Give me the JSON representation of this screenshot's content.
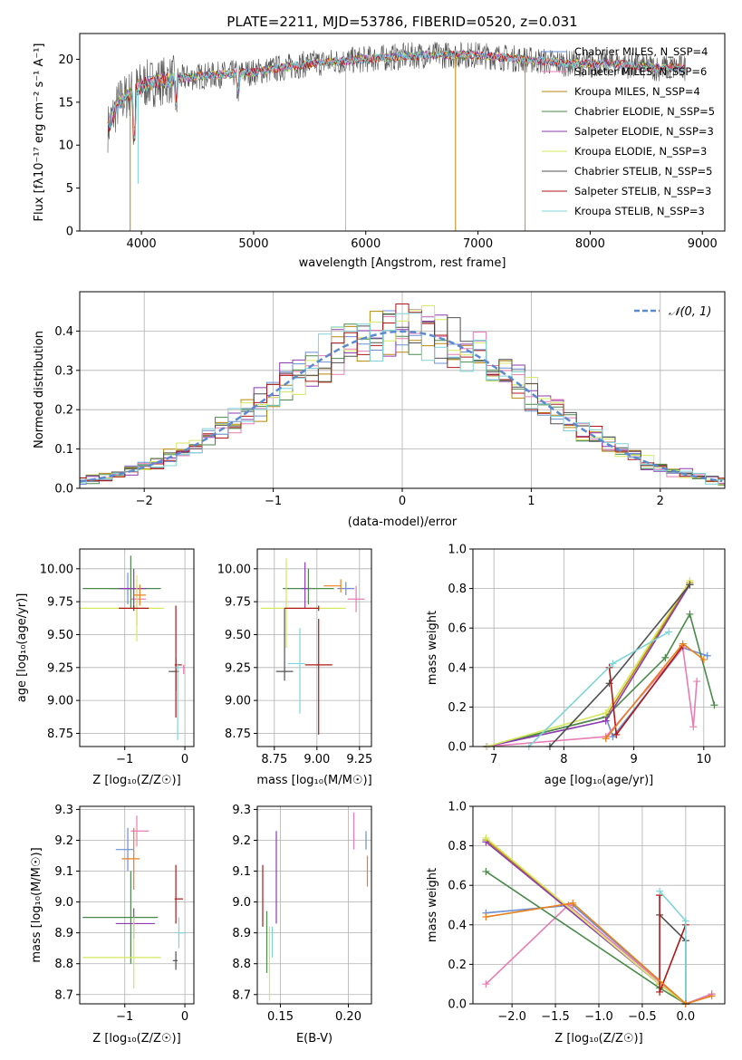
{
  "colors": {
    "chabrier_miles": "#6b8fd4",
    "salpeter_miles": "#e87cb4",
    "kroupa_miles": "#b8860b",
    "chabrier_elodie": "#4a8a4a",
    "salpeter_elodie": "#8e3ab0",
    "kroupa_elodie": "#d4e85c",
    "chabrier_stelib": "#505050",
    "salpeter_stelib": "#b01818",
    "kroupa_stelib": "#7fd4d8",
    "gauss": "#5b8ad0",
    "orange": "#e8801c",
    "grid": "#b0b0b0"
  },
  "chart_data": [
    {
      "id": "spectrum",
      "type": "line",
      "title": "PLATE=2211, MJD=53786, FIBERID=0520, z=0.031",
      "xlabel": "wavelength [Angstrom, rest frame]",
      "ylabel": "Flux [fλ10⁻¹⁷ erg cm⁻² s⁻¹ A⁻¹]",
      "xlim": [
        3450,
        9200
      ],
      "ylim": [
        0,
        23
      ],
      "xticks": [
        4000,
        5000,
        6000,
        7000,
        8000,
        9000
      ],
      "yticks": [
        0,
        5,
        10,
        15,
        20
      ],
      "grid": false,
      "legend_position": "top-right",
      "legend": [
        "Chabrier MILES, N_SSP=4",
        "Salpeter MILES, N_SSP=6",
        "Kroupa MILES, N_SSP=4",
        "Chabrier ELODIE, N_SSP=5",
        "Salpeter ELODIE, N_SSP=3",
        "Kroupa ELODIE, N_SSP=3",
        "Chabrier STELIB, N_SSP=5",
        "Salpeter STELIB, N_SSP=3",
        "Kroupa STELIB, N_SSP=3"
      ],
      "continuum": {
        "x": [
          3700,
          3800,
          3900,
          4000,
          4200,
          4500,
          5000,
          5500,
          6000,
          6500,
          7000,
          7400,
          7800,
          8200,
          8600,
          8850
        ],
        "y": [
          12,
          15,
          16,
          17,
          17.5,
          18,
          18.5,
          19.5,
          20,
          20.5,
          20.5,
          20,
          19.5,
          19.5,
          19,
          19
        ]
      },
      "dips": [
        {
          "x": 3900,
          "y": 0,
          "series": "kroupa_miles"
        },
        {
          "x": 3970,
          "y": 5.5,
          "series": "kroupa_stelib"
        },
        {
          "x": 5820,
          "y": 0,
          "series": "kroupa_stelib"
        },
        {
          "x": 6800,
          "y": 0,
          "series": "kroupa_miles"
        },
        {
          "x": 7420,
          "y": 0,
          "series": "orange"
        }
      ]
    },
    {
      "id": "residuals",
      "type": "line",
      "xlabel": "(data-model)/error",
      "ylabel": "Normed distribution",
      "xlim": [
        -2.5,
        2.5
      ],
      "ylim": [
        0,
        0.5
      ],
      "xticks": [
        -2,
        -1,
        0,
        1,
        2
      ],
      "yticks": [
        0.0,
        0.1,
        0.2,
        0.3,
        0.4
      ],
      "grid": true,
      "legend_position": "top-right",
      "legend": [
        "𝒩(0, 1)"
      ],
      "gaussian": {
        "mean": 0,
        "sigma": 1
      }
    },
    {
      "id": "age_vs_Z",
      "type": "scatter",
      "xlabel": "Z [log₁₀(Z/Z☉)]",
      "ylabel": "age  [log₁₀(age/yr)]",
      "xlim": [
        -1.75,
        0.15
      ],
      "ylim": [
        8.65,
        10.15
      ],
      "xticks": [
        -1,
        0
      ],
      "yticks": [
        8.75,
        9.0,
        9.25,
        9.5,
        9.75,
        10.0
      ],
      "grid": true,
      "points": [
        {
          "series": "chabrier_miles",
          "x": -0.95,
          "y": 9.85,
          "xerr": [
            0.3,
            0.2
          ],
          "yerr": [
            0.12,
            0.12
          ]
        },
        {
          "series": "salpeter_miles",
          "x": -0.8,
          "y": 9.77,
          "xerr": [
            0.1,
            0.15
          ],
          "yerr": [
            0.2,
            0.1
          ]
        },
        {
          "series": "chabrier_elodie",
          "x": -0.9,
          "y": 9.85,
          "xerr": [
            0.8,
            0.5
          ],
          "yerr": [
            0.15,
            0.25
          ]
        },
        {
          "series": "salpeter_elodie",
          "x": -0.85,
          "y": 9.85,
          "xerr": [
            0.25,
            0.2
          ],
          "yerr": [
            0.15,
            0.15
          ]
        },
        {
          "series": "kroupa_elodie",
          "x": -0.8,
          "y": 9.7,
          "xerr": [
            0.95,
            0.45
          ],
          "yerr": [
            0.25,
            0.25
          ]
        },
        {
          "series": "orange",
          "x": -0.75,
          "y": 9.8,
          "xerr": [
            0.1,
            0.1
          ],
          "yerr": [
            0.08,
            0.08
          ]
        },
        {
          "series": "salpeter_stelib",
          "x": -0.85,
          "y": 9.7,
          "xerr": [
            0.25,
            0.25
          ],
          "yerr": [
            0.02,
            0.02
          ]
        },
        {
          "series": "chabrier_stelib",
          "x": -0.15,
          "y": 9.22,
          "xerr": [
            0.12,
            0.05
          ],
          "yerr": [
            0.15,
            0.1
          ]
        },
        {
          "series": "salpeter_stelib",
          "x": -0.15,
          "y": 9.27,
          "xerr": [
            0.02,
            0.1
          ],
          "yerr": [
            0.4,
            0.45
          ]
        },
        {
          "series": "kroupa_stelib",
          "x": -0.12,
          "y": 9.25,
          "xerr": [
            0.03,
            0.05
          ],
          "yerr": [
            0.55,
            0.03
          ]
        },
        {
          "series": "salpeter_miles",
          "x": -0.02,
          "y": 9.25,
          "xerr": [
            0.02,
            0.02
          ],
          "yerr": [
            0.05,
            0.02
          ]
        }
      ]
    },
    {
      "id": "age_vs_mass",
      "type": "scatter",
      "xlabel": "mass [log₁₀(M/M☉)]",
      "ylabel": "",
      "xlim": [
        8.65,
        9.32
      ],
      "ylim": [
        8.65,
        10.15
      ],
      "xticks": [
        8.75,
        9.0,
        9.25
      ],
      "yticks": [
        8.75,
        9.0,
        9.25,
        9.5,
        9.75,
        10.0
      ],
      "grid": true,
      "points": [
        {
          "series": "chabrier_miles",
          "x": 9.17,
          "y": 9.85,
          "xerr": [
            0.05,
            0.05
          ],
          "yerr": [
            0.05,
            0.05
          ]
        },
        {
          "series": "salpeter_miles",
          "x": 9.23,
          "y": 9.77,
          "xerr": [
            0.05,
            0.05
          ],
          "yerr": [
            0.1,
            0.1
          ]
        },
        {
          "series": "orange",
          "x": 9.14,
          "y": 9.87,
          "xerr": [
            0.1,
            0.0
          ],
          "yerr": [
            0.05,
            0.05
          ]
        },
        {
          "series": "chabrier_elodie",
          "x": 8.95,
          "y": 9.85,
          "xerr": [
            0.15,
            0.15
          ],
          "yerr": [
            0.12,
            0.15
          ]
        },
        {
          "series": "salpeter_elodie",
          "x": 8.93,
          "y": 9.85,
          "xerr": [
            0.02,
            0.02
          ],
          "yerr": [
            0.15,
            0.2
          ]
        },
        {
          "series": "kroupa_elodie",
          "x": 8.82,
          "y": 9.7,
          "xerr": [
            0.15,
            0.35
          ],
          "yerr": [
            0.3,
            0.38
          ]
        },
        {
          "series": "chabrier_stelib",
          "x": 8.81,
          "y": 9.22,
          "xerr": [
            0.05,
            0.05
          ],
          "yerr": [
            0.07,
            0.48
          ]
        },
        {
          "series": "salpeter_stelib",
          "x": 9.01,
          "y": 9.27,
          "xerr": [
            0.08,
            0.08
          ],
          "yerr": [
            0.53,
            0.35
          ]
        },
        {
          "series": "kroupa_stelib",
          "x": 8.9,
          "y": 9.28,
          "xerr": [
            0.07,
            0.03
          ],
          "yerr": [
            0.38,
            0.27
          ]
        },
        {
          "series": "salpeter_stelib",
          "x": 9.01,
          "y": 9.7,
          "xerr": [
            0.2,
            0.0
          ],
          "yerr": [
            0.02,
            0.02
          ]
        }
      ]
    },
    {
      "id": "weight_vs_age",
      "type": "line",
      "xlabel": "age  [log₁₀(age/yr)]",
      "ylabel": "mass weight",
      "xlim": [
        6.7,
        10.3
      ],
      "ylim": [
        0,
        1
      ],
      "xticks": [
        7,
        8,
        9,
        10
      ],
      "yticks": [
        0.0,
        0.2,
        0.4,
        0.6,
        0.8,
        1.0
      ],
      "grid": true,
      "series": [
        {
          "key": "chabrier_miles",
          "x": [
            6.9,
            8.6,
            8.7,
            9.7,
            10.05
          ],
          "y": [
            0.0,
            0.15,
            0.05,
            0.5,
            0.46
          ]
        },
        {
          "key": "salpeter_miles",
          "x": [
            6.9,
            8.6,
            9.7,
            9.85,
            9.9
          ],
          "y": [
            0.0,
            0.05,
            0.5,
            0.1,
            0.33
          ]
        },
        {
          "key": "kroupa_miles",
          "x": [
            6.9,
            8.6,
            9.8
          ],
          "y": [
            0.0,
            0.15,
            0.83
          ]
        },
        {
          "key": "chabrier_elodie",
          "x": [
            6.9,
            8.6,
            9.45,
            9.8,
            10.15
          ],
          "y": [
            0.0,
            0.15,
            0.45,
            0.67,
            0.21
          ]
        },
        {
          "key": "salpeter_elodie",
          "x": [
            6.9,
            8.6,
            9.8
          ],
          "y": [
            0.0,
            0.13,
            0.82
          ]
        },
        {
          "key": "kroupa_elodie",
          "x": [
            6.9,
            8.6,
            9.8
          ],
          "y": [
            0.0,
            0.17,
            0.84
          ]
        },
        {
          "key": "chabrier_stelib",
          "x": [
            7.8,
            8.65,
            9.8
          ],
          "y": [
            0.0,
            0.32,
            0.82
          ]
        },
        {
          "key": "salpeter_stelib",
          "x": [
            8.65,
            8.75,
            9.7
          ],
          "y": [
            0.4,
            0.06,
            0.51
          ]
        },
        {
          "key": "kroupa_stelib",
          "x": [
            7.5,
            8.7,
            9.5
          ],
          "y": [
            0.0,
            0.42,
            0.58
          ]
        },
        {
          "key": "orange",
          "x": [
            8.6,
            9.7,
            10.0
          ],
          "y": [
            0.04,
            0.52,
            0.44
          ]
        }
      ]
    },
    {
      "id": "mass_vs_Z",
      "type": "scatter",
      "xlabel": "Z [log₁₀(Z/Z☉)]",
      "ylabel": "mass [log₁₀(M/M☉)]",
      "xlim": [
        -1.75,
        0.15
      ],
      "ylim": [
        8.67,
        9.31
      ],
      "xticks": [
        -1,
        0
      ],
      "yticks": [
        8.7,
        8.8,
        8.9,
        9.0,
        9.1,
        9.2,
        9.3
      ],
      "grid": true,
      "points": [
        {
          "series": "chabrier_miles",
          "x": -0.95,
          "y": 9.17,
          "xerr": [
            0.2,
            0.1
          ],
          "yerr": [
            0.07,
            0.07
          ]
        },
        {
          "series": "salpeter_miles",
          "x": -0.8,
          "y": 9.23,
          "xerr": [
            0.1,
            0.2
          ],
          "yerr": [
            0.05,
            0.05
          ]
        },
        {
          "series": "orange",
          "x": -0.85,
          "y": 9.14,
          "xerr": [
            0.2,
            0.1
          ],
          "yerr": [
            0.1,
            0.1
          ]
        },
        {
          "series": "chabrier_elodie",
          "x": -0.9,
          "y": 8.95,
          "xerr": [
            0.8,
            0.45
          ],
          "yerr": [
            0.15,
            0.15
          ]
        },
        {
          "series": "salpeter_elodie",
          "x": -0.85,
          "y": 8.93,
          "xerr": [
            0.3,
            0.35
          ],
          "yerr": [
            0.05,
            0.05
          ]
        },
        {
          "series": "kroupa_elodie",
          "x": -0.85,
          "y": 8.82,
          "xerr": [
            0.85,
            0.45
          ],
          "yerr": [
            0.1,
            0.13
          ]
        },
        {
          "series": "chabrier_stelib",
          "x": -0.15,
          "y": 8.81,
          "xerr": [
            0.05,
            0.03
          ],
          "yerr": [
            0.03,
            0.03
          ]
        },
        {
          "series": "salpeter_stelib",
          "x": -0.15,
          "y": 9.01,
          "xerr": [
            0.02,
            0.12
          ],
          "yerr": [
            0.08,
            0.11
          ]
        },
        {
          "series": "kroupa_stelib",
          "x": -0.1,
          "y": 8.9,
          "xerr": [
            0.02,
            0.12
          ],
          "yerr": [
            0.05,
            0.05
          ]
        }
      ]
    },
    {
      "id": "mass_vs_ebv",
      "type": "scatter",
      "xlabel": "E(B-V)",
      "ylabel": "",
      "xlim": [
        0.133,
        0.217
      ],
      "ylim": [
        8.67,
        9.31
      ],
      "xticks": [
        0.15,
        0.2
      ],
      "yticks": [
        8.7,
        8.8,
        8.9,
        9.0,
        9.1,
        9.2,
        9.3
      ],
      "grid": true,
      "points": [
        {
          "series": "salpeter_stelib",
          "x": 0.137,
          "y": 9.02,
          "xerr": [
            0,
            0
          ],
          "yerr": [
            0.1,
            0.1
          ]
        },
        {
          "series": "chabrier_elodie",
          "x": 0.14,
          "y": 8.87,
          "xerr": [
            0,
            0
          ],
          "yerr": [
            0.1,
            0.1
          ]
        },
        {
          "series": "kroupa_elodie",
          "x": 0.142,
          "y": 8.82,
          "xerr": [
            0,
            0
          ],
          "yerr": [
            0.14,
            0.1
          ]
        },
        {
          "series": "kroupa_stelib",
          "x": 0.144,
          "y": 8.87,
          "xerr": [
            0,
            0
          ],
          "yerr": [
            0.05,
            0.05
          ]
        },
        {
          "series": "salpeter_elodie",
          "x": 0.147,
          "y": 9.08,
          "xerr": [
            0,
            0
          ],
          "yerr": [
            0.15,
            0.15
          ]
        },
        {
          "series": "salpeter_miles",
          "x": 0.204,
          "y": 9.23,
          "xerr": [
            0,
            0
          ],
          "yerr": [
            0.06,
            0.06
          ]
        },
        {
          "series": "chabrier_miles",
          "x": 0.213,
          "y": 9.2,
          "xerr": [
            0,
            0
          ],
          "yerr": [
            0.03,
            0.03
          ]
        },
        {
          "series": "orange",
          "x": 0.214,
          "y": 9.1,
          "xerr": [
            0,
            0
          ],
          "yerr": [
            0.05,
            0.05
          ]
        }
      ]
    },
    {
      "id": "weight_vs_Z",
      "type": "line",
      "xlabel": "Z [log₁₀(Z/Z☉)]",
      "ylabel": "mass weight",
      "xlim": [
        -2.45,
        0.45
      ],
      "ylim": [
        0,
        1
      ],
      "xticks": [
        -2.0,
        -1.5,
        -1.0,
        -0.5,
        0.0
      ],
      "yticks": [
        0.0,
        0.2,
        0.4,
        0.6,
        0.8,
        1.0
      ],
      "grid": true,
      "series": [
        {
          "key": "chabrier_miles",
          "x": [
            -2.3,
            -1.3,
            0.0,
            0.3
          ],
          "y": [
            0.46,
            0.5,
            0.0,
            0.05
          ]
        },
        {
          "key": "salpeter_miles",
          "x": [
            -2.3,
            -1.35,
            0.0,
            0.3
          ],
          "y": [
            0.1,
            0.5,
            0.0,
            0.05
          ]
        },
        {
          "key": "kroupa_miles",
          "x": [
            -2.3,
            -0.3,
            0.0
          ],
          "y": [
            0.83,
            0.1,
            0.0
          ]
        },
        {
          "key": "chabrier_elodie",
          "x": [
            -2.3,
            -0.3,
            0.0
          ],
          "y": [
            0.67,
            0.08,
            0.0
          ]
        },
        {
          "key": "salpeter_elodie",
          "x": [
            -2.3,
            -0.3,
            0.0
          ],
          "y": [
            0.82,
            0.1,
            0.0
          ]
        },
        {
          "key": "kroupa_elodie",
          "x": [
            -2.3,
            -0.3,
            0.0
          ],
          "y": [
            0.84,
            0.1,
            0.0
          ]
        },
        {
          "key": "chabrier_stelib",
          "x": [
            -0.3,
            0.0,
            0.0
          ],
          "y": [
            0.45,
            0.32,
            0.0
          ]
        },
        {
          "key": "salpeter_stelib",
          "x": [
            -0.3,
            -0.3,
            0.0
          ],
          "y": [
            0.55,
            0.06,
            0.4
          ]
        },
        {
          "key": "kroupa_stelib",
          "x": [
            -0.3,
            0.0,
            0.0
          ],
          "y": [
            0.57,
            0.42,
            0.0
          ]
        },
        {
          "key": "orange",
          "x": [
            -2.3,
            -1.3,
            0.0,
            0.3
          ],
          "y": [
            0.44,
            0.51,
            0.0,
            0.04
          ]
        }
      ]
    }
  ]
}
